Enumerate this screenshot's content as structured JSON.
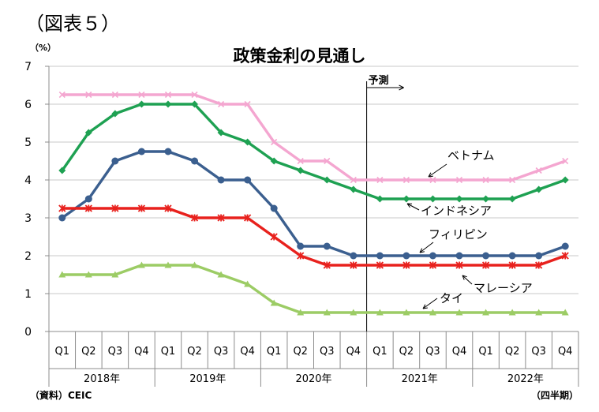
{
  "figure_label": "（図表５）",
  "source_label": "（資料）CEIC",
  "period_label": "（四半期）",
  "chart_data": {
    "type": "line",
    "title": "政策金利の見通し",
    "unit": "（%）",
    "ylim": [
      0,
      7
    ],
    "yticks": [
      0,
      1,
      2,
      3,
      4,
      5,
      6,
      7
    ],
    "grid": true,
    "categories": [
      "Q1",
      "Q2",
      "Q3",
      "Q4",
      "Q1",
      "Q2",
      "Q3",
      "Q4",
      "Q1",
      "Q2",
      "Q3",
      "Q4",
      "Q1",
      "Q2",
      "Q3",
      "Q4",
      "Q1",
      "Q2",
      "Q3",
      "Q4"
    ],
    "years": [
      "2018年",
      "2019年",
      "2020年",
      "2021年",
      "2022年"
    ],
    "forecast": {
      "label": "予測",
      "start_index": 12
    },
    "series": [
      {
        "name": "ベトナム",
        "color": "#f4a6d0",
        "marker": "cross",
        "values": [
          6.25,
          6.25,
          6.25,
          6.25,
          6.25,
          6.25,
          6.0,
          6.0,
          5.0,
          4.5,
          4.5,
          4.0,
          4.0,
          4.0,
          4.0,
          4.0,
          4.0,
          4.0,
          4.25,
          4.5
        ]
      },
      {
        "name": "インドネシア",
        "color": "#1ea152",
        "marker": "diamond",
        "values": [
          4.25,
          5.25,
          5.75,
          6.0,
          6.0,
          6.0,
          5.25,
          5.0,
          4.5,
          4.25,
          4.0,
          3.75,
          3.5,
          3.5,
          3.5,
          3.5,
          3.5,
          3.5,
          3.75,
          4.0
        ]
      },
      {
        "name": "フィリピン",
        "color": "#3b5f8f",
        "marker": "circle",
        "values": [
          3.0,
          3.5,
          4.5,
          4.75,
          4.75,
          4.5,
          4.0,
          4.0,
          3.25,
          2.25,
          2.25,
          2.0,
          2.0,
          2.0,
          2.0,
          2.0,
          2.0,
          2.0,
          2.0,
          2.25
        ]
      },
      {
        "name": "マレーシア",
        "color": "#e8211d",
        "marker": "asterisk",
        "values": [
          3.25,
          3.25,
          3.25,
          3.25,
          3.25,
          3.0,
          3.0,
          3.0,
          2.5,
          2.0,
          1.75,
          1.75,
          1.75,
          1.75,
          1.75,
          1.75,
          1.75,
          1.75,
          1.75,
          2.0
        ]
      },
      {
        "name": "タイ",
        "color": "#9ccc65",
        "marker": "triangle",
        "values": [
          1.5,
          1.5,
          1.5,
          1.75,
          1.75,
          1.75,
          1.5,
          1.25,
          0.75,
          0.5,
          0.5,
          0.5,
          0.5,
          0.5,
          0.5,
          0.5,
          0.5,
          0.5,
          0.5,
          0.5
        ]
      }
    ]
  }
}
